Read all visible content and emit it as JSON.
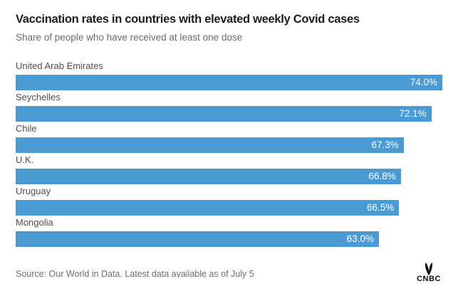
{
  "chart_data": {
    "type": "bar",
    "orientation": "horizontal",
    "title": "Vaccination rates in countries with elevated weekly Covid cases",
    "subtitle": "Share of people who have received at least one dose",
    "categories": [
      "United Arab Emirates",
      "Seychelles",
      "Chile",
      "U.K.",
      "Uruguay",
      "Mongolia"
    ],
    "values": [
      74.0,
      72.1,
      67.3,
      66.8,
      66.5,
      63.0
    ],
    "value_labels": [
      "74.0%",
      "72.1%",
      "67.3%",
      "66.8%",
      "66.5%",
      "63.0%"
    ],
    "axis_max": 74.0,
    "bar_color": "#4a9bd4",
    "value_text_color": "#ffffff",
    "legend": "none",
    "grid": false,
    "source": "Source: Our World in Data. Latest data available as of July 5",
    "logo_text": "CNBC"
  }
}
